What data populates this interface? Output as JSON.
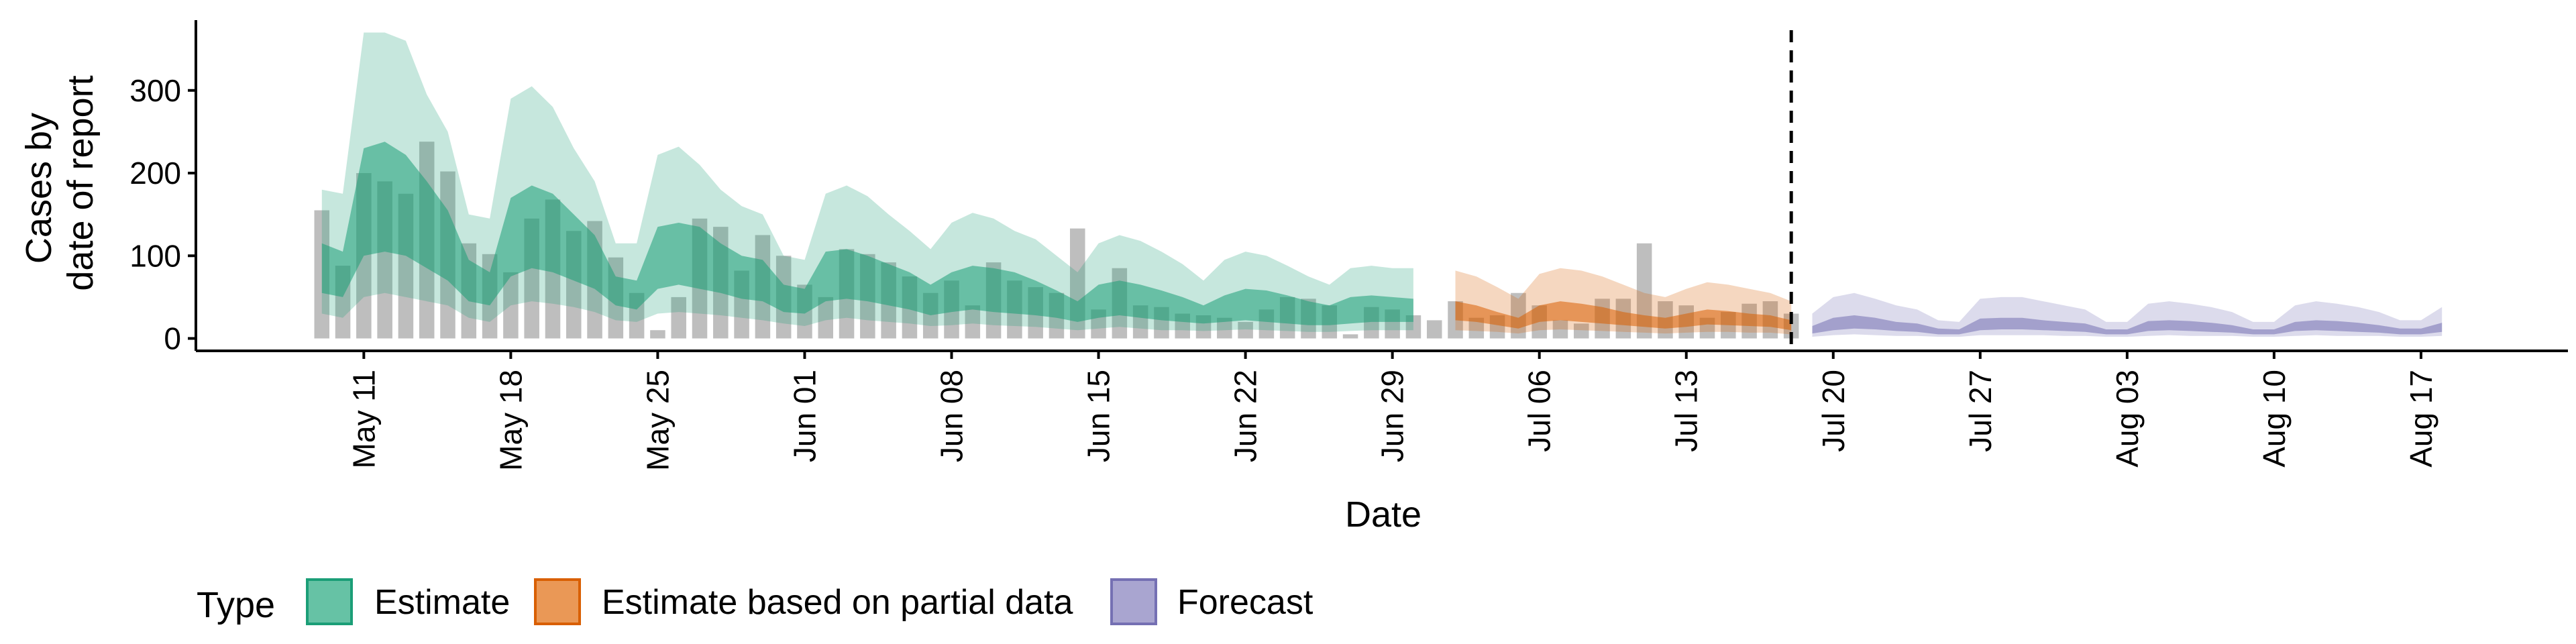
{
  "chart_data": {
    "type": "area",
    "xlabel": "Date",
    "ylabel": [
      "Cases by",
      "date of report"
    ],
    "x_axis": {
      "type": "date",
      "range": [
        "2020-05-03",
        "2020-08-24"
      ],
      "ticks": [
        "2020-05-11",
        "2020-05-18",
        "2020-05-25",
        "2020-06-01",
        "2020-06-08",
        "2020-06-15",
        "2020-06-22",
        "2020-06-29",
        "2020-07-06",
        "2020-07-13",
        "2020-07-20",
        "2020-07-27",
        "2020-08-03",
        "2020-08-10",
        "2020-08-17"
      ],
      "tick_labels": [
        "May 11",
        "May 18",
        "May 25",
        "Jun 01",
        "Jun 08",
        "Jun 15",
        "Jun 22",
        "Jun 29",
        "Jul 06",
        "Jul 13",
        "Jul 20",
        "Jul 27",
        "Aug 03",
        "Aug 10",
        "Aug 17"
      ]
    },
    "y_axis": {
      "range": [
        -15,
        385
      ],
      "ticks": [
        0,
        100,
        200,
        300
      ],
      "tick_labels": [
        "0",
        "100",
        "200",
        "300"
      ]
    },
    "reference_line": {
      "date": "2020-07-18",
      "style": "dashed"
    },
    "grid": false,
    "legend": {
      "title": "Type",
      "position": "bottom-left",
      "items": [
        {
          "label": "Estimate",
          "fill": "#66c2a5",
          "stroke": "#1b9e77"
        },
        {
          "label": "Estimate based on partial data",
          "fill": "#ea9856",
          "stroke": "#d95f02"
        },
        {
          "label": "Forecast",
          "fill": "#a9a5d0",
          "stroke": "#7570b3"
        }
      ]
    },
    "colors": {
      "observed_bars": "#b3b3b3",
      "estimate": "#1b9e77",
      "partial": "#d95f02",
      "forecast": "#7570b3"
    },
    "observed_cases": {
      "dates": [
        "2020-05-09",
        "2020-05-10",
        "2020-05-11",
        "2020-05-12",
        "2020-05-13",
        "2020-05-14",
        "2020-05-15",
        "2020-05-16",
        "2020-05-17",
        "2020-05-18",
        "2020-05-19",
        "2020-05-20",
        "2020-05-21",
        "2020-05-22",
        "2020-05-23",
        "2020-05-24",
        "2020-05-25",
        "2020-05-26",
        "2020-05-27",
        "2020-05-28",
        "2020-05-29",
        "2020-05-30",
        "2020-05-31",
        "2020-06-01",
        "2020-06-02",
        "2020-06-03",
        "2020-06-04",
        "2020-06-05",
        "2020-06-06",
        "2020-06-07",
        "2020-06-08",
        "2020-06-09",
        "2020-06-10",
        "2020-06-11",
        "2020-06-12",
        "2020-06-13",
        "2020-06-14",
        "2020-06-15",
        "2020-06-16",
        "2020-06-17",
        "2020-06-18",
        "2020-06-19",
        "2020-06-20",
        "2020-06-21",
        "2020-06-22",
        "2020-06-23",
        "2020-06-24",
        "2020-06-25",
        "2020-06-26",
        "2020-06-27",
        "2020-06-28",
        "2020-06-29",
        "2020-06-30",
        "2020-07-01",
        "2020-07-02",
        "2020-07-03",
        "2020-07-04",
        "2020-07-05",
        "2020-07-06",
        "2020-07-07",
        "2020-07-08",
        "2020-07-09",
        "2020-07-10",
        "2020-07-11",
        "2020-07-12",
        "2020-07-13",
        "2020-07-14",
        "2020-07-15",
        "2020-07-16",
        "2020-07-17",
        "2020-07-18"
      ],
      "values": [
        155,
        88,
        200,
        190,
        175,
        238,
        202,
        115,
        102,
        80,
        145,
        168,
        130,
        142,
        98,
        55,
        10,
        50,
        145,
        135,
        82,
        125,
        100,
        65,
        50,
        108,
        102,
        92,
        75,
        55,
        70,
        40,
        92,
        70,
        62,
        55,
        133,
        35,
        85,
        40,
        38,
        30,
        28,
        25,
        20,
        35,
        50,
        48,
        40,
        5,
        38,
        35,
        28,
        22,
        45,
        25,
        28,
        55,
        40,
        22,
        18,
        48,
        48,
        115,
        45,
        40,
        25,
        32,
        42,
        45,
        30
      ]
    },
    "series": [
      {
        "name": "Estimate",
        "dates": [
          "2020-05-09",
          "2020-05-10",
          "2020-05-11",
          "2020-05-12",
          "2020-05-13",
          "2020-05-14",
          "2020-05-15",
          "2020-05-16",
          "2020-05-17",
          "2020-05-18",
          "2020-05-19",
          "2020-05-20",
          "2020-05-21",
          "2020-05-22",
          "2020-05-23",
          "2020-05-24",
          "2020-05-25",
          "2020-05-26",
          "2020-05-27",
          "2020-05-28",
          "2020-05-29",
          "2020-05-30",
          "2020-05-31",
          "2020-06-01",
          "2020-06-02",
          "2020-06-03",
          "2020-06-04",
          "2020-06-05",
          "2020-06-06",
          "2020-06-07",
          "2020-06-08",
          "2020-06-09",
          "2020-06-10",
          "2020-06-11",
          "2020-06-12",
          "2020-06-13",
          "2020-06-14",
          "2020-06-15",
          "2020-06-16",
          "2020-06-17",
          "2020-06-18",
          "2020-06-19",
          "2020-06-20",
          "2020-06-21",
          "2020-06-22",
          "2020-06-23",
          "2020-06-24",
          "2020-06-25",
          "2020-06-26",
          "2020-06-27",
          "2020-06-28",
          "2020-06-29",
          "2020-06-30"
        ],
        "upper_90": [
          180,
          175,
          370,
          370,
          360,
          295,
          250,
          150,
          145,
          290,
          305,
          280,
          230,
          190,
          115,
          115,
          222,
          232,
          210,
          180,
          160,
          150,
          100,
          95,
          175,
          185,
          172,
          150,
          130,
          108,
          140,
          152,
          145,
          130,
          120,
          100,
          80,
          115,
          125,
          118,
          105,
          90,
          70,
          95,
          105,
          100,
          88,
          75,
          65,
          85,
          88,
          85,
          85
        ],
        "upper_50": [
          115,
          105,
          230,
          238,
          222,
          190,
          155,
          95,
          80,
          170,
          185,
          175,
          150,
          125,
          75,
          70,
          135,
          140,
          135,
          115,
          100,
          95,
          65,
          60,
          105,
          108,
          100,
          90,
          80,
          65,
          80,
          88,
          85,
          80,
          70,
          58,
          45,
          65,
          70,
          65,
          58,
          50,
          40,
          52,
          60,
          58,
          52,
          45,
          40,
          50,
          52,
          50,
          48
        ],
        "lower_50": [
          55,
          50,
          100,
          105,
          100,
          85,
          70,
          45,
          40,
          75,
          85,
          80,
          70,
          60,
          40,
          35,
          60,
          65,
          60,
          55,
          48,
          45,
          32,
          30,
          45,
          48,
          45,
          40,
          35,
          28,
          32,
          35,
          32,
          30,
          28,
          25,
          20,
          25,
          28,
          25,
          22,
          20,
          18,
          20,
          22,
          20,
          18,
          16,
          16,
          18,
          20,
          20,
          20
        ],
        "lower_90": [
          30,
          25,
          50,
          55,
          50,
          45,
          40,
          25,
          20,
          40,
          45,
          42,
          38,
          32,
          22,
          20,
          30,
          32,
          30,
          28,
          25,
          22,
          18,
          15,
          22,
          25,
          22,
          20,
          18,
          15,
          16,
          18,
          16,
          15,
          14,
          12,
          10,
          12,
          14,
          12,
          10,
          10,
          9,
          10,
          11,
          10,
          9,
          8,
          8,
          9,
          10,
          10,
          10
        ]
      },
      {
        "name": "Estimate based on partial data",
        "dates": [
          "2020-07-02",
          "2020-07-03",
          "2020-07-04",
          "2020-07-05",
          "2020-07-06",
          "2020-07-07",
          "2020-07-08",
          "2020-07-09",
          "2020-07-10",
          "2020-07-11",
          "2020-07-12",
          "2020-07-13",
          "2020-07-14",
          "2020-07-15",
          "2020-07-16",
          "2020-07-17",
          "2020-07-18"
        ],
        "upper_90": [
          82,
          75,
          62,
          48,
          78,
          85,
          82,
          75,
          65,
          55,
          50,
          60,
          68,
          65,
          60,
          55,
          45
        ],
        "upper_50": [
          45,
          40,
          32,
          25,
          40,
          45,
          42,
          38,
          32,
          28,
          25,
          30,
          35,
          33,
          30,
          28,
          22
        ],
        "lower_50": [
          22,
          20,
          16,
          12,
          20,
          22,
          20,
          18,
          16,
          14,
          12,
          14,
          17,
          16,
          15,
          14,
          10
        ],
        "lower_90": [
          10,
          9,
          8,
          6,
          10,
          11,
          10,
          9,
          8,
          7,
          6,
          7,
          8,
          8,
          7,
          7,
          5
        ]
      },
      {
        "name": "Forecast",
        "dates": [
          "2020-07-19",
          "2020-07-20",
          "2020-07-21",
          "2020-07-22",
          "2020-07-23",
          "2020-07-24",
          "2020-07-25",
          "2020-07-26",
          "2020-07-27",
          "2020-07-28",
          "2020-07-29",
          "2020-07-30",
          "2020-07-31",
          "2020-08-01",
          "2020-08-02",
          "2020-08-03",
          "2020-08-04",
          "2020-08-05",
          "2020-08-06",
          "2020-08-07",
          "2020-08-08",
          "2020-08-09",
          "2020-08-10",
          "2020-08-11",
          "2020-08-12",
          "2020-08-13",
          "2020-08-14",
          "2020-08-15",
          "2020-08-16",
          "2020-08-17",
          "2020-08-18"
        ],
        "upper_90": [
          30,
          50,
          55,
          48,
          40,
          35,
          22,
          20,
          48,
          50,
          50,
          45,
          40,
          35,
          20,
          20,
          42,
          45,
          42,
          38,
          32,
          20,
          20,
          40,
          45,
          42,
          38,
          32,
          22,
          22,
          38
        ],
        "upper_50": [
          15,
          25,
          28,
          25,
          20,
          18,
          12,
          11,
          24,
          25,
          25,
          22,
          20,
          18,
          11,
          11,
          21,
          22,
          21,
          19,
          16,
          11,
          11,
          20,
          22,
          21,
          19,
          16,
          12,
          12,
          19
        ],
        "lower_50": [
          6,
          10,
          12,
          11,
          9,
          8,
          5,
          5,
          10,
          11,
          11,
          10,
          9,
          8,
          5,
          5,
          9,
          10,
          9,
          8,
          7,
          5,
          5,
          9,
          10,
          9,
          8,
          7,
          5,
          5,
          8
        ],
        "lower_90": [
          2,
          4,
          5,
          4,
          3,
          3,
          2,
          2,
          4,
          4,
          4,
          4,
          3,
          3,
          2,
          2,
          3,
          4,
          3,
          3,
          3,
          2,
          2,
          3,
          4,
          3,
          3,
          3,
          2,
          2,
          3
        ]
      }
    ]
  }
}
